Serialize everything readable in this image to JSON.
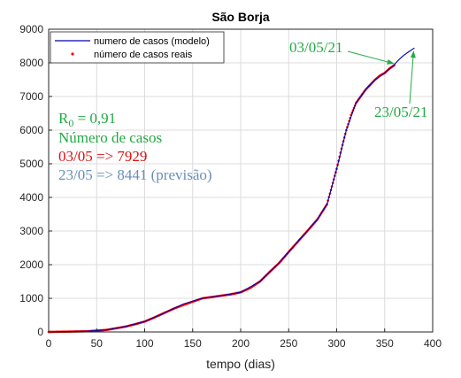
{
  "chart_data": {
    "type": "line",
    "title": "São Borja",
    "xlabel": "tempo (dias)",
    "ylabel": "",
    "xlim": [
      0,
      400
    ],
    "ylim": [
      0,
      9000
    ],
    "xticks": [
      0,
      50,
      100,
      150,
      200,
      250,
      300,
      350,
      400
    ],
    "yticks": [
      0,
      1000,
      2000,
      3000,
      4000,
      5000,
      6000,
      7000,
      8000,
      9000
    ],
    "grid": true,
    "legend_position": "top-left",
    "series": [
      {
        "name": "numero de casos (modelo)",
        "color": "#0000aa",
        "style": "line",
        "x": [
          0,
          20,
          40,
          60,
          80,
          100,
          120,
          140,
          160,
          180,
          200,
          220,
          240,
          260,
          280,
          290,
          300,
          310,
          320,
          330,
          340,
          350,
          360,
          365,
          370,
          375,
          381
        ],
        "y": [
          0,
          10,
          20,
          60,
          160,
          310,
          560,
          830,
          1000,
          1080,
          1180,
          1500,
          2050,
          2700,
          3350,
          3800,
          4850,
          6000,
          6800,
          7200,
          7500,
          7700,
          7950,
          8100,
          8230,
          8330,
          8441
        ]
      },
      {
        "name": "número de casos reais",
        "color": "#ff0000",
        "style": "markers",
        "x": [
          0,
          10,
          20,
          30,
          40,
          50,
          60,
          70,
          80,
          90,
          100,
          110,
          120,
          130,
          140,
          150,
          160,
          170,
          180,
          190,
          200,
          210,
          220,
          230,
          240,
          250,
          260,
          270,
          280,
          290,
          300,
          305,
          310,
          315,
          320,
          325,
          330,
          335,
          340,
          345,
          350,
          355,
          360
        ],
        "y": [
          0,
          5,
          10,
          15,
          20,
          40,
          60,
          110,
          160,
          230,
          310,
          430,
          560,
          690,
          800,
          900,
          1000,
          1040,
          1080,
          1120,
          1180,
          1310,
          1500,
          1780,
          2050,
          2380,
          2700,
          3020,
          3350,
          3800,
          4850,
          5450,
          6000,
          6450,
          6800,
          7000,
          7200,
          7350,
          7500,
          7620,
          7700,
          7830,
          7929
        ]
      }
    ],
    "annotations": [
      {
        "text": "03/05/21",
        "color": "#22aa44",
        "points_to": [
          361,
          7929
        ]
      },
      {
        "text": "23/05/21",
        "color": "#22aa44",
        "points_to": [
          381,
          8441
        ]
      }
    ]
  },
  "info_box": {
    "r0_main": "R",
    "r0_sub": "0",
    "r0_value": " = 0,91",
    "cases_label": "Número de casos",
    "actual_line": "03/05 => 7929",
    "forecast_line": "23/05 => 8441 (previsão)",
    "r0_color": "#22aa44",
    "cases_color": "#22aa44",
    "actual_color": "#dd1111",
    "forecast_color": "#6a8fb8"
  }
}
